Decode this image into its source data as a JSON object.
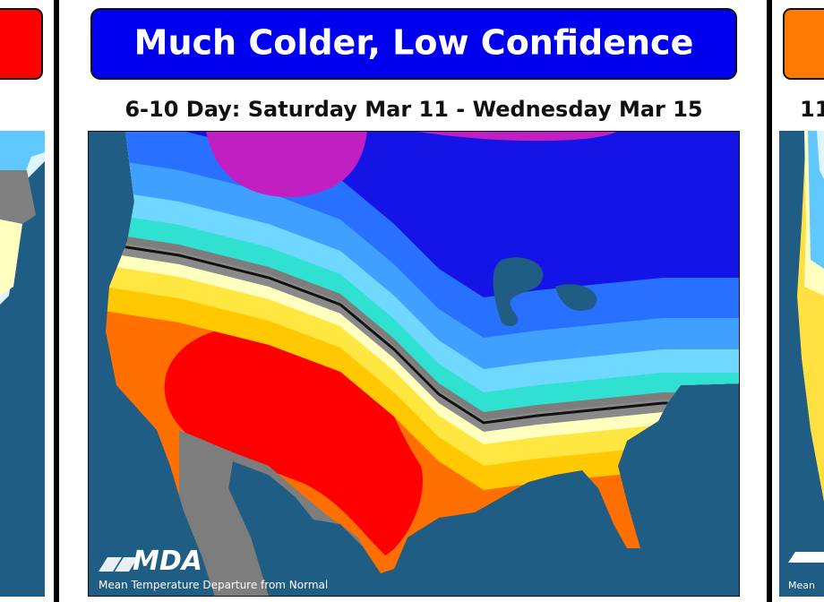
{
  "center": {
    "banner": "Much Colder, Low Confidence",
    "subtitle": "6-10 Day: Saturday Mar 11 - Wednesday Mar 15",
    "logo": "MDA",
    "caption": "Mean Temperature Departure from Normal"
  },
  "right_panel": {
    "subtitle": "11",
    "caption": "Mean"
  }
}
